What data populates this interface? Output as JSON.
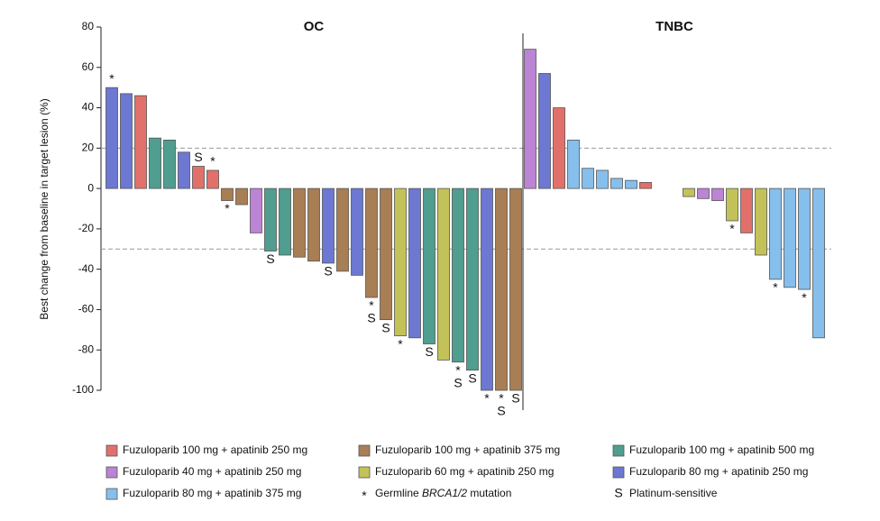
{
  "chart_data": {
    "type": "waterfall",
    "ylabel": "Best change from baseline in target lesion (%)",
    "ylim": [
      -100,
      80
    ],
    "yticks": [
      -100,
      -80,
      -60,
      -40,
      -20,
      0,
      20,
      40,
      60,
      80
    ],
    "reference_lines": [
      20,
      -30
    ],
    "series": [
      {
        "name": "Fuzuloparib 100 mg + apatinib 250 mg",
        "color": "#e2706a"
      },
      {
        "name": "Fuzuloparib 100 mg + apatinib 375 mg",
        "color": "#a87e55"
      },
      {
        "name": "Fuzuloparib 100 mg + apatinib 500 mg",
        "color": "#4f9e8f"
      },
      {
        "name": "Fuzuloparib 40 mg + apatinib 250 mg",
        "color": "#bc84d4"
      },
      {
        "name": "Fuzuloparib 60 mg + apatinib 250 mg",
        "color": "#c3c258"
      },
      {
        "name": "Fuzuloparib 80 mg + apatinib 250 mg",
        "color": "#6c78d2"
      },
      {
        "name": "Fuzuloparib 80 mg + apatinib 375 mg",
        "color": "#86bfec"
      }
    ],
    "symbols": [
      {
        "symbol": "*",
        "label": [
          "Germline ",
          "BRCA1/2",
          " mutation"
        ]
      },
      {
        "symbol": "S",
        "label": [
          "Platinum-sensitive"
        ]
      }
    ],
    "groups": [
      {
        "name": "OC",
        "values": [
          50,
          47,
          46,
          25,
          24,
          18,
          11,
          9,
          -6,
          -8,
          -22,
          -31,
          -33,
          -34,
          -36,
          -37,
          -41,
          -43,
          -54,
          -65,
          -73,
          -74,
          -77,
          -85,
          -86,
          -90,
          -100,
          -100,
          -100
        ],
        "regimens": [
          5,
          5,
          0,
          2,
          2,
          5,
          0,
          0,
          1,
          1,
          3,
          2,
          2,
          1,
          1,
          5,
          1,
          5,
          1,
          1,
          4,
          5,
          2,
          4,
          2,
          2,
          5,
          1,
          1
        ],
        "marks": [
          [
            "*"
          ],
          [],
          [],
          [],
          [],
          [],
          [
            "S"
          ],
          [
            "*"
          ],
          [
            "*"
          ],
          [],
          [],
          [
            "S"
          ],
          [],
          [],
          [],
          [
            "S"
          ],
          [],
          [],
          [
            "*",
            "S"
          ],
          [
            "S"
          ],
          [
            "*"
          ],
          [],
          [
            "S"
          ],
          [],
          [
            "*",
            "S"
          ],
          [
            "S"
          ],
          [
            "*"
          ],
          [
            "*",
            "S"
          ],
          [
            "S"
          ]
        ]
      },
      {
        "name": "TNBC",
        "values": [
          69,
          57,
          40,
          24,
          10,
          9,
          5,
          4,
          3,
          0,
          0,
          -4,
          -5,
          -6,
          -16,
          -22,
          -33,
          -45,
          -49,
          -50,
          -74
        ],
        "regimens": [
          3,
          5,
          0,
          6,
          6,
          6,
          6,
          6,
          0,
          null,
          null,
          4,
          3,
          3,
          4,
          0,
          4,
          6,
          6,
          6,
          6
        ],
        "marks": [
          [],
          [],
          [],
          [],
          [],
          [],
          [],
          [],
          [],
          [],
          [],
          [],
          [],
          [],
          [
            "*"
          ],
          [],
          [],
          [
            "*"
          ],
          [],
          [
            "*"
          ],
          []
        ]
      }
    ]
  }
}
